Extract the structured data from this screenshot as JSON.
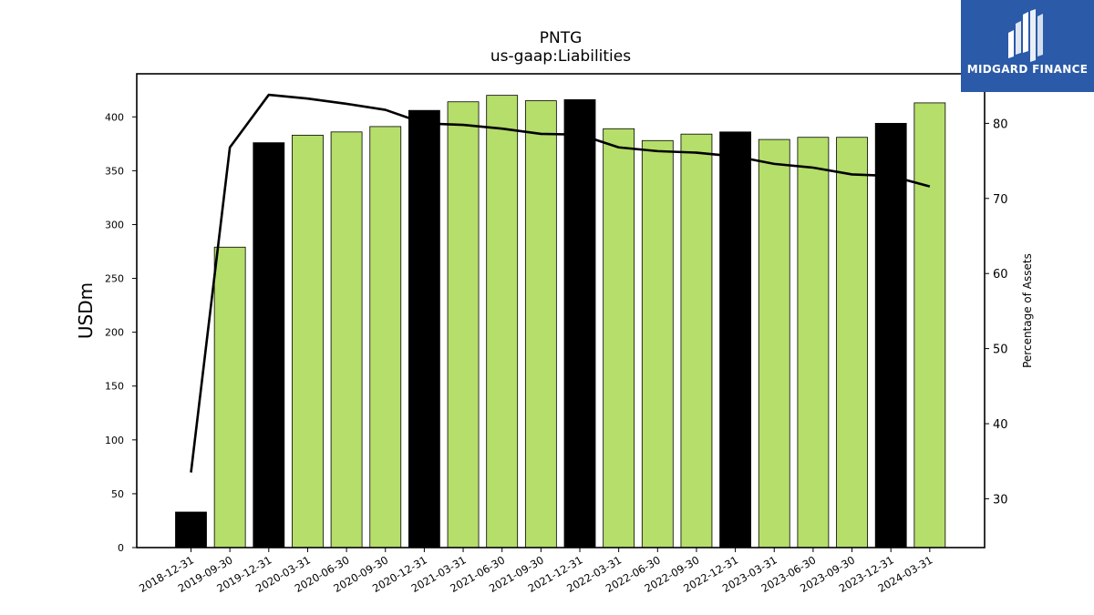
{
  "header": {
    "title": "PNTG",
    "subtitle": "us-gaap:Liabilities"
  },
  "brand": {
    "name": "MIDGARD FINANCE",
    "color": "#2a5aa8"
  },
  "colors": {
    "bar_annual": "#000000",
    "bar_quarter": "#b5de6a",
    "line": "#000000"
  },
  "chart_data": {
    "type": "bar",
    "categories": [
      "2018-12-31",
      "2019-09-30",
      "2019-12-31",
      "2020-03-31",
      "2020-06-30",
      "2020-09-30",
      "2020-12-31",
      "2021-03-31",
      "2021-06-30",
      "2021-09-30",
      "2021-12-31",
      "2022-03-31",
      "2022-06-30",
      "2022-09-30",
      "2022-12-31",
      "2023-03-31",
      "2023-06-30",
      "2023-09-30",
      "2023-12-31",
      "2024-03-31"
    ],
    "series": [
      {
        "values": [
          33,
          279,
          376,
          383,
          386,
          391,
          406,
          414,
          420,
          415,
          416,
          389,
          378,
          384,
          386,
          379,
          381,
          381,
          394,
          413
        ],
        "annual_flags": [
          true,
          false,
          true,
          false,
          false,
          false,
          true,
          false,
          false,
          false,
          true,
          false,
          false,
          false,
          true,
          false,
          false,
          false,
          true,
          false
        ],
        "axis": "left"
      },
      {
        "type": "line",
        "values": [
          33.5,
          76.8,
          83.8,
          83.3,
          82.6,
          81.8,
          80.0,
          79.8,
          79.3,
          78.6,
          78.5,
          76.8,
          76.3,
          76.1,
          75.6,
          74.6,
          74.1,
          73.2,
          73.0,
          71.6
        ],
        "axis": "right"
      }
    ],
    "ylabel": "USDm",
    "y2label": "Percentage of Assets",
    "ylim": [
      0,
      440
    ],
    "y2lim": [
      23.5,
      86.6
    ],
    "yticks": [
      0,
      50,
      100,
      150,
      200,
      250,
      300,
      350,
      400
    ],
    "y2ticks": [
      30,
      40,
      50,
      60,
      70,
      80
    ],
    "grid": false,
    "legend": "none"
  }
}
